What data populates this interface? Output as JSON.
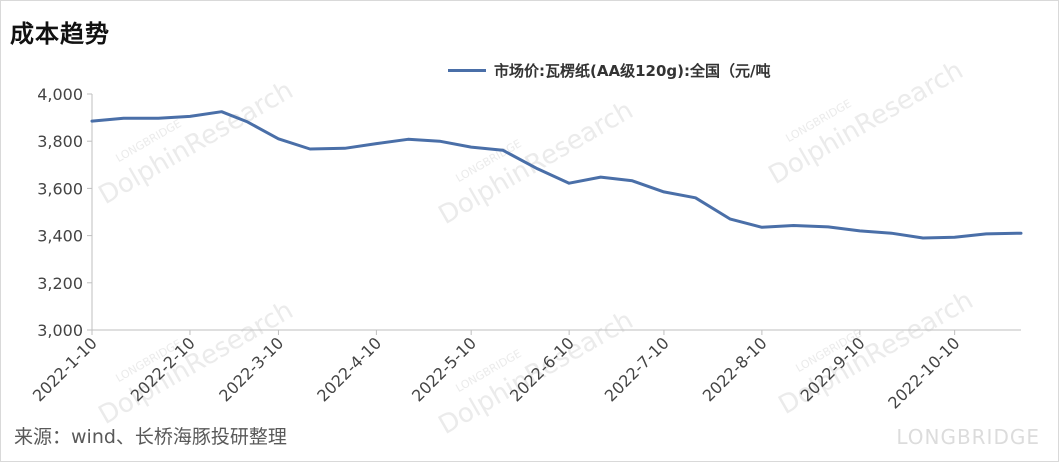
{
  "header": {
    "title": "成本趋势"
  },
  "footer": {
    "source": "来源：wind、长桥海豚投研整理"
  },
  "watermark": {
    "text": "DolphinResearch",
    "subtext": "LONGBRIDGE",
    "corner": "LONGBRIDGE"
  },
  "chart_data": {
    "type": "line",
    "title": "成本趋势",
    "xlabel": "",
    "ylabel": "",
    "ylim": [
      3000,
      4000
    ],
    "yticks": [
      "3,000",
      "3,200",
      "3,400",
      "3,600",
      "3,800",
      "4,000"
    ],
    "xticks": [
      "2022-1-10",
      "2022-2-10",
      "2022-3-10",
      "2022-4-10",
      "2022-5-10",
      "2022-6-10",
      "2022-7-10",
      "2022-8-10",
      "2022-9-10",
      "2022-10-10"
    ],
    "legend_position": "top-right",
    "grid": false,
    "series": [
      {
        "name": "市场价:瓦楞纸(AA级120g):全国（元/吨",
        "color": "#4a6fa8",
        "x": [
          "2022-01-10",
          "2022-01-20",
          "2022-01-31",
          "2022-02-10",
          "2022-02-20",
          "2022-02-28",
          "2022-03-10",
          "2022-03-20",
          "2022-03-31",
          "2022-04-10",
          "2022-04-20",
          "2022-04-30",
          "2022-05-10",
          "2022-05-20",
          "2022-05-31",
          "2022-06-10",
          "2022-06-20",
          "2022-06-30",
          "2022-07-10",
          "2022-07-20",
          "2022-07-31",
          "2022-08-10",
          "2022-08-20",
          "2022-08-31",
          "2022-09-10",
          "2022-09-20",
          "2022-09-30",
          "2022-10-10",
          "2022-10-20",
          "2022-10-31"
        ],
        "values": [
          3885,
          3897,
          3897,
          3905,
          3925,
          3883,
          3810,
          3767,
          3770,
          3790,
          3808,
          3800,
          3775,
          3762,
          3683,
          3622,
          3648,
          3632,
          3585,
          3560,
          3470,
          3435,
          3443,
          3437,
          3420,
          3410,
          3390,
          3393,
          3407,
          3410
        ]
      }
    ]
  }
}
